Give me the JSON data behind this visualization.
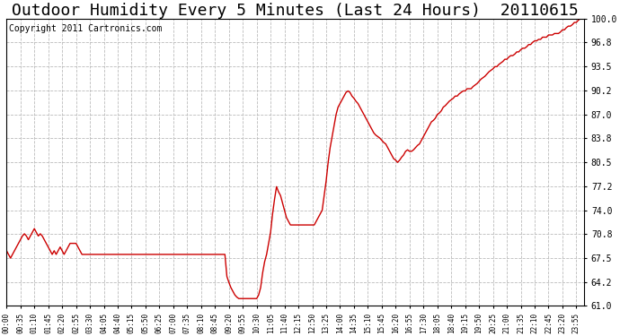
{
  "title": "Outdoor Humidity Every 5 Minutes (Last 24 Hours)  20110615",
  "copyright": "Copyright 2011 Cartronics.com",
  "ymin": 61.0,
  "ymax": 100.0,
  "yticks": [
    61.0,
    64.2,
    67.5,
    70.8,
    74.0,
    77.2,
    80.5,
    83.8,
    87.0,
    90.2,
    93.5,
    96.8,
    100.0
  ],
  "line_color": "#cc0000",
  "bg_color": "#ffffff",
  "plot_bg_color": "#ffffff",
  "grid_color": "#bbbbbb",
  "title_fontsize": 13,
  "copyright_fontsize": 7,
  "tick_every": 7,
  "humidity_data": [
    68.5,
    68.0,
    67.5,
    68.0,
    68.5,
    69.0,
    69.5,
    70.0,
    70.5,
    70.8,
    70.5,
    70.0,
    70.5,
    71.0,
    71.5,
    71.0,
    70.5,
    70.8,
    70.5,
    70.0,
    69.5,
    69.0,
    68.5,
    68.0,
    68.5,
    68.0,
    68.5,
    69.0,
    68.5,
    68.0,
    68.5,
    69.0,
    69.5,
    69.5,
    69.5,
    69.5,
    69.0,
    68.5,
    68.0,
    68.0,
    68.0,
    68.0,
    68.0,
    68.0,
    68.0,
    68.0,
    68.0,
    68.0,
    68.0,
    68.0,
    68.0,
    68.0,
    68.0,
    68.0,
    68.0,
    68.0,
    68.0,
    68.0,
    68.0,
    68.0,
    68.0,
    68.0,
    68.0,
    68.0,
    68.0,
    68.0,
    68.0,
    68.0,
    68.0,
    68.0,
    68.0,
    68.0,
    68.0,
    68.0,
    68.0,
    68.0,
    68.0,
    68.0,
    68.0,
    68.0,
    68.0,
    68.0,
    68.0,
    68.0,
    68.0,
    68.0,
    68.0,
    68.0,
    68.0,
    68.0,
    68.0,
    68.0,
    68.0,
    68.0,
    68.0,
    68.0,
    68.0,
    68.0,
    68.0,
    68.0,
    68.0,
    68.0,
    68.0,
    68.0,
    68.0,
    68.0,
    68.0,
    68.0,
    68.0,
    68.0,
    68.0,
    65.0,
    64.2,
    63.5,
    63.0,
    62.5,
    62.2,
    62.0,
    62.0,
    62.0,
    62.0,
    62.0,
    62.0,
    62.0,
    62.0,
    62.0,
    62.0,
    62.5,
    63.5,
    65.5,
    67.0,
    68.0,
    69.5,
    71.0,
    73.5,
    75.5,
    77.2,
    76.5,
    76.0,
    75.0,
    74.0,
    73.0,
    72.5,
    72.0,
    72.0,
    72.0,
    72.0,
    72.0,
    72.0,
    72.0,
    72.0,
    72.0,
    72.0,
    72.0,
    72.0,
    72.0,
    72.5,
    73.0,
    73.5,
    74.0,
    76.0,
    78.0,
    80.5,
    82.5,
    84.0,
    85.5,
    87.0,
    88.0,
    88.5,
    89.0,
    89.5,
    90.0,
    90.2,
    90.0,
    89.5,
    89.2,
    88.8,
    88.5,
    88.0,
    87.5,
    87.0,
    86.5,
    86.0,
    85.5,
    85.0,
    84.5,
    84.2,
    84.0,
    83.8,
    83.5,
    83.2,
    83.0,
    82.5,
    82.0,
    81.5,
    81.0,
    80.8,
    80.5,
    80.8,
    81.2,
    81.5,
    82.0,
    82.2,
    82.0,
    82.0,
    82.2,
    82.5,
    82.8,
    83.0,
    83.5,
    84.0,
    84.5,
    85.0,
    85.5,
    86.0,
    86.2,
    86.5,
    87.0,
    87.2,
    87.5,
    88.0,
    88.2,
    88.5,
    88.8,
    89.0,
    89.2,
    89.5,
    89.5,
    89.8,
    90.0,
    90.2,
    90.2,
    90.5,
    90.5,
    90.5,
    90.8,
    91.0,
    91.2,
    91.5,
    91.8,
    92.0,
    92.2,
    92.5,
    92.8,
    93.0,
    93.2,
    93.5,
    93.5,
    93.8,
    94.0,
    94.2,
    94.5,
    94.5,
    94.8,
    95.0,
    95.0,
    95.2,
    95.5,
    95.5,
    95.8,
    96.0,
    96.0,
    96.2,
    96.5,
    96.5,
    96.8,
    97.0,
    97.0,
    97.2,
    97.2,
    97.5,
    97.5,
    97.5,
    97.8,
    97.8,
    97.8,
    98.0,
    98.0,
    98.0,
    98.2,
    98.5,
    98.5,
    98.8,
    99.0,
    99.0,
    99.2,
    99.5,
    99.5,
    99.8,
    100.0,
    100.0,
    100.2
  ]
}
